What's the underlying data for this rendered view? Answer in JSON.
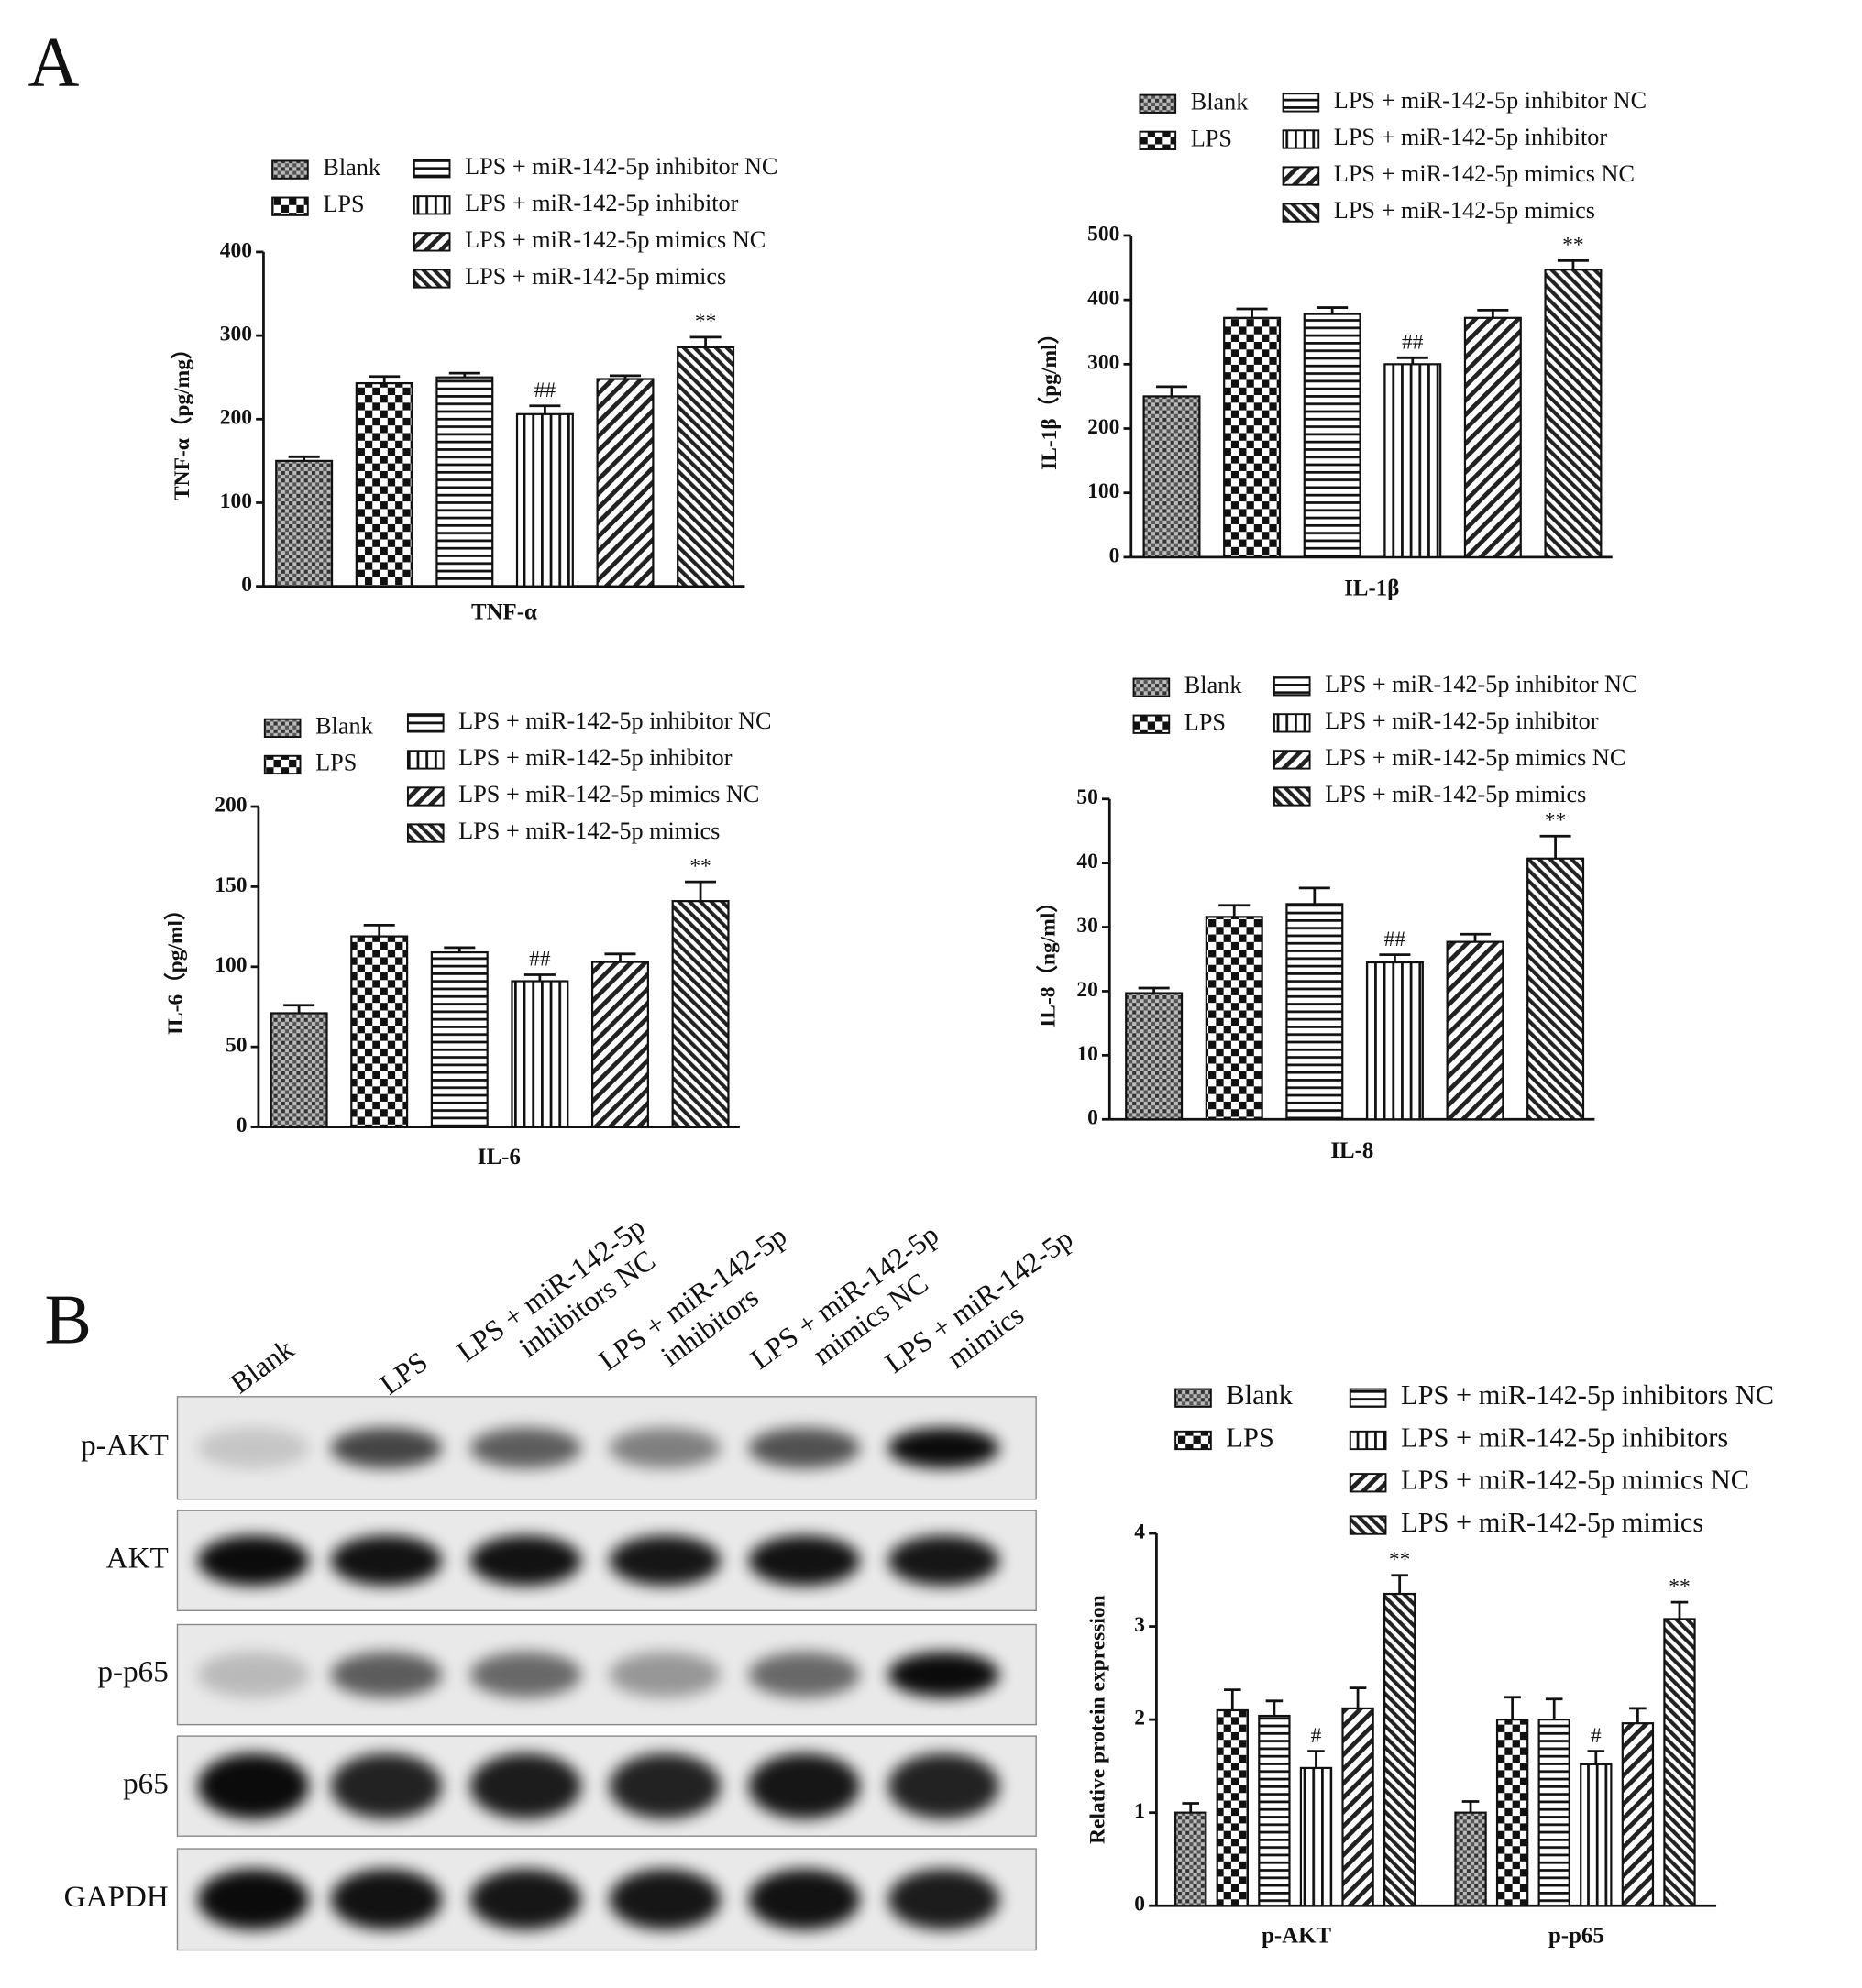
{
  "panels": [
    "A",
    "B"
  ],
  "chart_data": [
    {
      "type": "bar",
      "y_label": "TNF-α（pg/mg）",
      "categories": [
        "TNF-α"
      ],
      "ylim": [
        0,
        400
      ],
      "yticks": [
        0,
        100,
        200,
        300,
        400
      ],
      "series": [
        {
          "name": "Blank",
          "pattern": "fine-check",
          "values": [
            150
          ],
          "errors": [
            5
          ]
        },
        {
          "name": "LPS",
          "pattern": "check",
          "values": [
            243
          ],
          "errors": [
            8
          ]
        },
        {
          "name": "LPS + miR-142-5p inhibitor NC",
          "pattern": "hlines",
          "values": [
            250
          ],
          "errors": [
            5
          ]
        },
        {
          "name": "LPS + miR-142-5p inhibitor",
          "pattern": "vlines",
          "values": [
            206
          ],
          "errors": [
            10
          ],
          "significance": [
            "##"
          ]
        },
        {
          "name": "LPS + miR-142-5p mimics NC",
          "pattern": "diag",
          "values": [
            248
          ],
          "errors": [
            4
          ]
        },
        {
          "name": "LPS + miR-142-5p mimics",
          "pattern": "diag-dense",
          "values": [
            286
          ],
          "errors": [
            12
          ],
          "significance": [
            "**"
          ]
        }
      ]
    },
    {
      "type": "bar",
      "y_label": "IL-1β（pg/ml）",
      "categories": [
        "IL-1β"
      ],
      "ylim": [
        0,
        500
      ],
      "yticks": [
        0,
        100,
        200,
        300,
        400,
        500
      ],
      "series": [
        {
          "name": "Blank",
          "pattern": "fine-check",
          "values": [
            250
          ],
          "errors": [
            15
          ]
        },
        {
          "name": "LPS",
          "pattern": "check",
          "values": [
            372
          ],
          "errors": [
            14
          ]
        },
        {
          "name": "LPS + miR-142-5p inhibitor NC",
          "pattern": "hlines",
          "values": [
            378
          ],
          "errors": [
            10
          ]
        },
        {
          "name": "LPS + miR-142-5p inhibitor",
          "pattern": "vlines",
          "values": [
            300
          ],
          "errors": [
            10
          ],
          "significance": [
            "##"
          ]
        },
        {
          "name": "LPS + miR-142-5p mimics NC",
          "pattern": "diag",
          "values": [
            372
          ],
          "errors": [
            12
          ]
        },
        {
          "name": "LPS + miR-142-5p mimics",
          "pattern": "diag-dense",
          "values": [
            447
          ],
          "errors": [
            14
          ],
          "significance": [
            "**"
          ]
        }
      ]
    },
    {
      "type": "bar",
      "y_label": "IL-6（pg/ml）",
      "categories": [
        "IL-6"
      ],
      "ylim": [
        0,
        200
      ],
      "yticks": [
        0,
        50,
        100,
        150,
        200
      ],
      "series": [
        {
          "name": "Blank",
          "pattern": "fine-check",
          "values": [
            71
          ],
          "errors": [
            5
          ]
        },
        {
          "name": "LPS",
          "pattern": "check",
          "values": [
            119
          ],
          "errors": [
            7
          ]
        },
        {
          "name": "LPS + miR-142-5p inhibitor NC",
          "pattern": "hlines",
          "values": [
            109
          ],
          "errors": [
            3
          ]
        },
        {
          "name": "LPS + miR-142-5p inhibitor",
          "pattern": "vlines",
          "values": [
            91
          ],
          "errors": [
            4
          ],
          "significance": [
            "##"
          ]
        },
        {
          "name": "LPS + miR-142-5p mimics NC",
          "pattern": "diag",
          "values": [
            103
          ],
          "errors": [
            5
          ]
        },
        {
          "name": "LPS + miR-142-5p mimics",
          "pattern": "diag-dense",
          "values": [
            141
          ],
          "errors": [
            12
          ],
          "significance": [
            "**"
          ]
        }
      ]
    },
    {
      "type": "bar",
      "y_label": "IL-8（ng/ml）",
      "categories": [
        "IL-8"
      ],
      "ylim": [
        0,
        50
      ],
      "yticks": [
        0,
        10,
        20,
        30,
        40,
        50
      ],
      "series": [
        {
          "name": "Blank",
          "pattern": "fine-check",
          "values": [
            19.7
          ],
          "errors": [
            0.8
          ]
        },
        {
          "name": "LPS",
          "pattern": "check",
          "values": [
            31.6
          ],
          "errors": [
            1.8
          ]
        },
        {
          "name": "LPS + miR-142-5p inhibitor NC",
          "pattern": "hlines",
          "values": [
            33.6
          ],
          "errors": [
            2.5
          ]
        },
        {
          "name": "LPS + miR-142-5p inhibitor",
          "pattern": "vlines",
          "values": [
            24.5
          ],
          "errors": [
            1.2
          ],
          "significance": [
            "##"
          ]
        },
        {
          "name": "LPS + miR-142-5p mimics NC",
          "pattern": "diag",
          "values": [
            27.7
          ],
          "errors": [
            1.2
          ]
        },
        {
          "name": "LPS + miR-142-5p mimics",
          "pattern": "diag-dense",
          "values": [
            40.7
          ],
          "errors": [
            3.5
          ],
          "significance": [
            "**"
          ]
        }
      ]
    },
    {
      "type": "bar",
      "y_label": "Relative protein expression",
      "categories": [
        "p-AKT",
        "p-p65"
      ],
      "ylim": [
        0,
        4
      ],
      "yticks": [
        0,
        1,
        2,
        3,
        4
      ],
      "series": [
        {
          "name": "Blank",
          "pattern": "fine-check",
          "values": [
            1.0,
            1.0
          ],
          "errors": [
            0.1,
            0.12
          ]
        },
        {
          "name": "LPS",
          "pattern": "check",
          "values": [
            2.1,
            2.0
          ],
          "errors": [
            0.22,
            0.24
          ]
        },
        {
          "name": "LPS + miR-142-5p inhibitors NC",
          "pattern": "hlines",
          "values": [
            2.04,
            2.0
          ],
          "errors": [
            0.16,
            0.22
          ]
        },
        {
          "name": "LPS + miR-142-5p inhibitors",
          "pattern": "vlines",
          "values": [
            1.48,
            1.52
          ],
          "errors": [
            0.18,
            0.14
          ],
          "significance": [
            "#",
            "#"
          ]
        },
        {
          "name": "LPS + miR-142-5p mimics NC",
          "pattern": "diag",
          "values": [
            2.12,
            1.96
          ],
          "errors": [
            0.22,
            0.16
          ]
        },
        {
          "name": "LPS + miR-142-5p mimics",
          "pattern": "diag-dense",
          "values": [
            3.35,
            3.08
          ],
          "errors": [
            0.2,
            0.18
          ],
          "significance": [
            "**",
            "**"
          ]
        }
      ]
    }
  ],
  "blot": {
    "lanes": [
      [
        "Blank"
      ],
      [
        "LPS"
      ],
      [
        "LPS + miR-142-5p",
        "inhibitors NC"
      ],
      [
        "LPS + miR-142-5p",
        "inhibitors"
      ],
      [
        "LPS + miR-142-5p",
        "mimics NC"
      ],
      [
        "LPS + miR-142-5p",
        "mimics"
      ]
    ],
    "rows": [
      "p-AKT",
      "AKT",
      "p-p65",
      "p65",
      "GAPDH"
    ]
  }
}
